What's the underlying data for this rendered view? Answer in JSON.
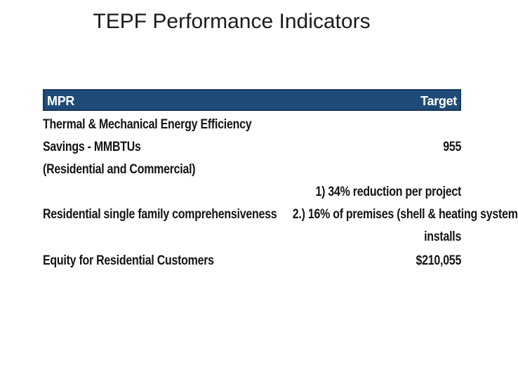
{
  "slide": {
    "title": "TEPF Performance Indicators"
  },
  "table": {
    "header": {
      "left": "MPR",
      "right": "Target"
    },
    "rows": [
      {
        "mpr_lines": [
          "Thermal & Mechanical Energy Efficiency",
          "Savings - MMBTUs",
          "(Residential and Commercial)"
        ],
        "target_lines": [
          "955"
        ]
      },
      {
        "mpr_lines": [
          "Residential single family comprehensiveness"
        ],
        "target_lines": [
          "1) 34% reduction per project",
          "2.) 16% of premises (shell & heating system",
          "installs"
        ]
      },
      {
        "mpr_lines": [
          "Equity for Residential Customers"
        ],
        "target_lines": [
          "$210,055"
        ]
      }
    ],
    "colors": {
      "header_bg": "#1F4B78",
      "header_border": "#17375E",
      "header_text": "#FFFFFF",
      "body_text": "#141414"
    }
  }
}
